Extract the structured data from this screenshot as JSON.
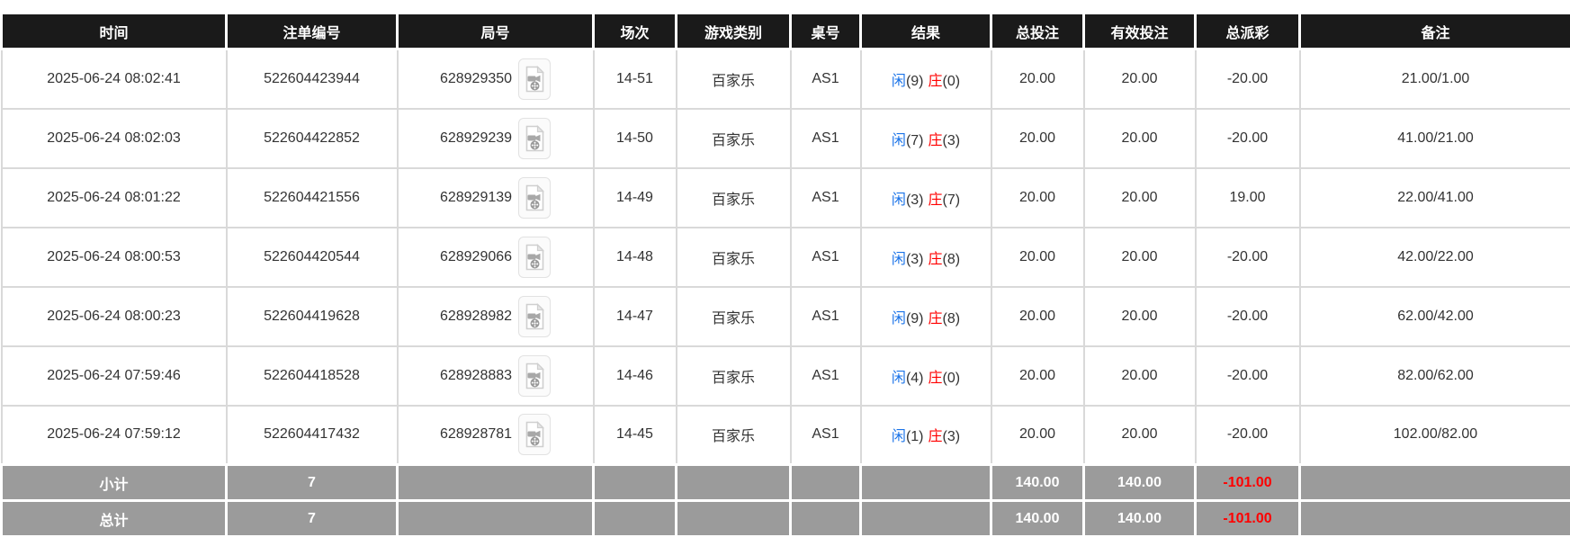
{
  "colors": {
    "header_bg": "#1a1a1a",
    "footer_bg": "#9b9b9b",
    "accent_blue": "#1a73e8",
    "accent_red": "#ff0000",
    "grid_line": "#d9d9d9"
  },
  "table": {
    "columns": [
      {
        "key": "time",
        "label": "时间"
      },
      {
        "key": "bet_id",
        "label": "注单编号"
      },
      {
        "key": "round",
        "label": "局号"
      },
      {
        "key": "session",
        "label": "场次"
      },
      {
        "key": "game_type",
        "label": "游戏类别"
      },
      {
        "key": "table_no",
        "label": "桌号"
      },
      {
        "key": "result",
        "label": "结果"
      },
      {
        "key": "total_bet",
        "label": "总投注"
      },
      {
        "key": "valid_bet",
        "label": "有效投注"
      },
      {
        "key": "total_payout",
        "label": "总派彩"
      },
      {
        "key": "remark",
        "label": "备注"
      }
    ],
    "video_icon": "video-file-icon",
    "rows": [
      {
        "time": "2025-06-24 08:02:41",
        "bet_id": "522604423944",
        "round": "628929350",
        "session": "14-51",
        "game_type": "百家乐",
        "table_no": "AS1",
        "result": {
          "player": "闲",
          "player_score": "(9)",
          "banker": "庄",
          "banker_score": "(0)"
        },
        "total_bet": "20.00",
        "valid_bet": "20.00",
        "total_payout": "-20.00",
        "remark": "21.00/1.00"
      },
      {
        "time": "2025-06-24 08:02:03",
        "bet_id": "522604422852",
        "round": "628929239",
        "session": "14-50",
        "game_type": "百家乐",
        "table_no": "AS1",
        "result": {
          "player": "闲",
          "player_score": "(7)",
          "banker": "庄",
          "banker_score": "(3)"
        },
        "total_bet": "20.00",
        "valid_bet": "20.00",
        "total_payout": "-20.00",
        "remark": "41.00/21.00"
      },
      {
        "time": "2025-06-24 08:01:22",
        "bet_id": "522604421556",
        "round": "628929139",
        "session": "14-49",
        "game_type": "百家乐",
        "table_no": "AS1",
        "result": {
          "player": "闲",
          "player_score": "(3)",
          "banker": "庄",
          "banker_score": "(7)"
        },
        "total_bet": "20.00",
        "valid_bet": "20.00",
        "total_payout": "19.00",
        "remark": "22.00/41.00"
      },
      {
        "time": "2025-06-24 08:00:53",
        "bet_id": "522604420544",
        "round": "628929066",
        "session": "14-48",
        "game_type": "百家乐",
        "table_no": "AS1",
        "result": {
          "player": "闲",
          "player_score": "(3)",
          "banker": "庄",
          "banker_score": "(8)"
        },
        "total_bet": "20.00",
        "valid_bet": "20.00",
        "total_payout": "-20.00",
        "remark": "42.00/22.00"
      },
      {
        "time": "2025-06-24 08:00:23",
        "bet_id": "522604419628",
        "round": "628928982",
        "session": "14-47",
        "game_type": "百家乐",
        "table_no": "AS1",
        "result": {
          "player": "闲",
          "player_score": "(9)",
          "banker": "庄",
          "banker_score": "(8)"
        },
        "total_bet": "20.00",
        "valid_bet": "20.00",
        "total_payout": "-20.00",
        "remark": "62.00/42.00"
      },
      {
        "time": "2025-06-24 07:59:46",
        "bet_id": "522604418528",
        "round": "628928883",
        "session": "14-46",
        "game_type": "百家乐",
        "table_no": "AS1",
        "result": {
          "player": "闲",
          "player_score": "(4)",
          "banker": "庄",
          "banker_score": "(0)"
        },
        "total_bet": "20.00",
        "valid_bet": "20.00",
        "total_payout": "-20.00",
        "remark": "82.00/62.00"
      },
      {
        "time": "2025-06-24 07:59:12",
        "bet_id": "522604417432",
        "round": "628928781",
        "session": "14-45",
        "game_type": "百家乐",
        "table_no": "AS1",
        "result": {
          "player": "闲",
          "player_score": "(1)",
          "banker": "庄",
          "banker_score": "(3)"
        },
        "total_bet": "20.00",
        "valid_bet": "20.00",
        "total_payout": "-20.00",
        "remark": "102.00/82.00"
      }
    ],
    "footer": [
      {
        "label": "小计",
        "count": "7",
        "total_bet": "140.00",
        "valid_bet": "140.00",
        "total_payout": "-101.00",
        "remark": ""
      },
      {
        "label": "总计",
        "count": "7",
        "total_bet": "140.00",
        "valid_bet": "140.00",
        "total_payout": "-101.00",
        "remark": ""
      }
    ]
  }
}
